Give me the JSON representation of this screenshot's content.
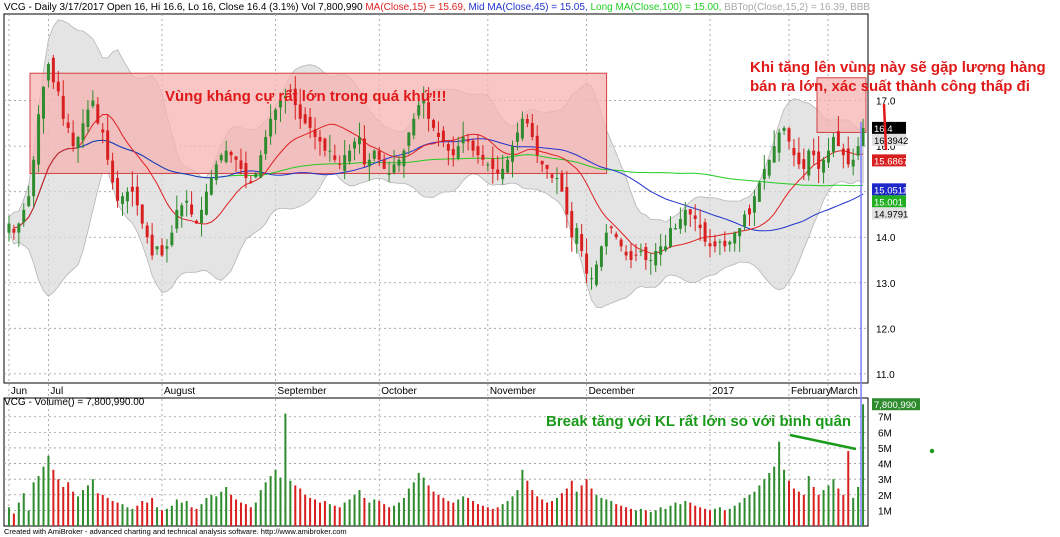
{
  "header": {
    "price_prefix": "VCG - Daily 3/17/2017 Open 16, Hi 16.6, Lo 16, Close 16.4 (3.1%) Vol 7,800,990",
    "ma15_text": "MA(Close,15) = 15.69,",
    "mid_text": "Mid MA(Close,45) = 15.05,",
    "long_text": "Long MA(Close,100) = 15.00,",
    "bbtop_text": "BBTop(Close,15,2) = 16.39,",
    "bbb_text": "BBB",
    "volume_label": "VCG - Volume() = 7,800,990.00",
    "footer": "Created with AmiBroker - advanced charting and technical analysis software. http://www.amibroker.com"
  },
  "annotations": {
    "resistance": "Vùng kháng cự rất lớn trong quá khứ!!!",
    "warning_line1": "Khi tăng lên vùng này sẽ gặp lượng hàng",
    "warning_line2": "bán ra lớn, xác suất thành công thấp đi",
    "breakout": "Break tăng với KL rất lớn so với bình quân"
  },
  "colors": {
    "up": "#2e8b2e",
    "down": "#d81e1e",
    "ma15": "#e02020",
    "ma45": "#2233cc",
    "ma100": "#22cc22",
    "zone_fill": "#f7b3b3",
    "zone_stroke": "#d04040",
    "band": "#d9d9d9",
    "annotation_red": "#e01818",
    "annotation_green": "#1a9a1a"
  },
  "chart_data": {
    "type": "candlestick",
    "symbol": "VCG",
    "period": "Daily",
    "date": "3/17/2017",
    "ohlc_last": {
      "open": 16,
      "high": 16.6,
      "low": 16,
      "close": 16.4,
      "change_pct": 3.1,
      "volume": 7800990
    },
    "x_labels": [
      "Jun",
      "Jul",
      "August",
      "September",
      "October",
      "November",
      "December",
      "2017",
      "February",
      "March"
    ],
    "price_axis": {
      "ticks": [
        11.0,
        12.0,
        13.0,
        14.0,
        15.0,
        16.0,
        17.0
      ],
      "range": [
        10.8,
        18.9
      ]
    },
    "volume_axis": {
      "ticks": [
        "1M",
        "2M",
        "3M",
        "4M",
        "5M",
        "6M",
        "7M"
      ],
      "range": [
        0,
        8200000
      ]
    },
    "price_badges": [
      {
        "text": "16.4",
        "value": 16.4,
        "color": "#000000"
      },
      {
        "text": "16.3942",
        "value": 16.3942,
        "color": "#e0e0e0"
      },
      {
        "text": "15.6867",
        "value": 15.6867,
        "color": "#d81e1e"
      },
      {
        "text": "15.0511",
        "value": 15.0511,
        "color": "#1e28c8"
      },
      {
        "text": "15.001",
        "value": 15.001,
        "color": "#22b022"
      },
      {
        "text": "14.9791",
        "value": 14.9791,
        "color": "#e0e0e0"
      }
    ],
    "volume_badge": {
      "text": "7,800,990",
      "value": 7800990
    },
    "resistance_zones": [
      {
        "from_month": "Jun",
        "to_month": "December",
        "low": 15.4,
        "high": 17.6
      },
      {
        "from_month": "February",
        "to_month": "March",
        "low": 16.3,
        "high": 17.5
      }
    ],
    "close_series": [
      14.3,
      14.1,
      14.3,
      14.6,
      14.9,
      15.7,
      16.7,
      17.3,
      17.8,
      17.4,
      17.2,
      16.6,
      16.4,
      16.0,
      16.2,
      16.5,
      16.8,
      17.0,
      16.5,
      16.3,
      15.7,
      15.2,
      14.8,
      14.9,
      15.0,
      15.0,
      14.7,
      14.3,
      14.0,
      13.6,
      13.8,
      13.6,
      13.8,
      14.1,
      14.6,
      14.7,
      14.8,
      14.5,
      14.3,
      14.6,
      15.0,
      15.3,
      15.6,
      15.8,
      15.9,
      15.8,
      15.7,
      15.5,
      15.3,
      15.2,
      15.4,
      15.8,
      16.2,
      16.6,
      16.8,
      17.0,
      17.1,
      17.2,
      16.9,
      16.6,
      16.5,
      16.4,
      16.2,
      16.1,
      15.9,
      15.9,
      15.7,
      15.6,
      15.8,
      15.9,
      16.1,
      16.2,
      15.6,
      15.7,
      15.9,
      15.7,
      15.5,
      15.4,
      15.6,
      15.7,
      15.9,
      16.3,
      16.6,
      16.9,
      17.0,
      16.6,
      16.4,
      16.2,
      16.1,
      15.9,
      15.8,
      16.0,
      16.2,
      16.1,
      15.9,
      15.8,
      15.7,
      15.6,
      15.5,
      15.4,
      15.5,
      15.7,
      16.0,
      16.3,
      16.6,
      16.5,
      16.2,
      15.8,
      15.6,
      15.5,
      15.3,
      15.3,
      15.0,
      14.5,
      14.0,
      14.2,
      13.7,
      13.2,
      13.1,
      13.4,
      13.8,
      14.1,
      14.2,
      14.0,
      13.8,
      13.6,
      13.5,
      13.6,
      13.7,
      13.5,
      13.5,
      13.7,
      13.8,
      13.8,
      14.2,
      14.2,
      14.4,
      14.6,
      14.5,
      14.4,
      14.2,
      13.9,
      13.8,
      13.8,
      13.9,
      13.8,
      13.9,
      14.1,
      14.2,
      14.5,
      14.5,
      14.9,
      15.2,
      15.5,
      15.7,
      16.0,
      16.3,
      16.4,
      16.1,
      15.8,
      15.6,
      15.5,
      15.9,
      15.8,
      15.5,
      15.7,
      15.9,
      16.2,
      16.0,
      15.8,
      15.6,
      15.7,
      16.0,
      16.4
    ],
    "volume_series_millions": [
      1.2,
      0.8,
      1.5,
      2.1,
      1.0,
      2.8,
      3.2,
      3.8,
      4.5,
      3.6,
      3.0,
      2.5,
      2.8,
      2.2,
      1.9,
      2.3,
      2.6,
      3.0,
      2.1,
      2.0,
      1.8,
      1.6,
      1.5,
      1.4,
      1.2,
      1.1,
      1.3,
      1.6,
      1.5,
      1.8,
      1.2,
      1.0,
      1.1,
      1.3,
      1.7,
      1.5,
      1.6,
      1.2,
      1.1,
      1.4,
      1.8,
      2.0,
      1.9,
      2.2,
      2.5,
      2.0,
      1.7,
      1.5,
      1.4,
      1.2,
      1.5,
      2.3,
      2.8,
      3.2,
      3.6,
      3.1,
      7.2,
      2.9,
      2.6,
      2.4,
      2.0,
      1.8,
      1.7,
      1.5,
      1.6,
      1.4,
      1.3,
      1.2,
      1.5,
      1.7,
      2.0,
      2.3,
      1.8,
      1.5,
      1.7,
      1.6,
      1.4,
      1.2,
      1.3,
      1.5,
      1.8,
      2.4,
      2.8,
      3.4,
      3.1,
      2.6,
      2.2,
      2.0,
      1.8,
      1.6,
      1.5,
      1.7,
      1.9,
      1.8,
      1.6,
      1.4,
      1.3,
      1.2,
      1.1,
      1.2,
      1.4,
      1.6,
      1.9,
      2.3,
      3.6,
      2.9,
      2.3,
      1.9,
      1.7,
      1.5,
      1.6,
      1.8,
      2.1,
      2.4,
      2.9,
      2.2,
      2.6,
      3.0,
      2.4,
      2.0,
      1.8,
      1.7,
      1.6,
      1.4,
      1.3,
      1.2,
      1.1,
      1.0,
      1.1,
      1.0,
      0.9,
      1.0,
      1.2,
      1.1,
      1.3,
      1.5,
      1.4,
      1.6,
      1.5,
      1.3,
      1.2,
      1.1,
      1.0,
      1.1,
      1.2,
      1.0,
      1.1,
      1.3,
      1.5,
      1.8,
      2.0,
      2.2,
      2.6,
      3.0,
      3.4,
      3.8,
      5.4,
      3.6,
      2.9,
      2.4,
      2.2,
      2.0,
      3.2,
      2.5,
      2.0,
      2.3,
      2.6,
      3.0,
      2.4,
      2.0,
      4.8,
      1.8,
      2.5,
      7.8
    ]
  }
}
